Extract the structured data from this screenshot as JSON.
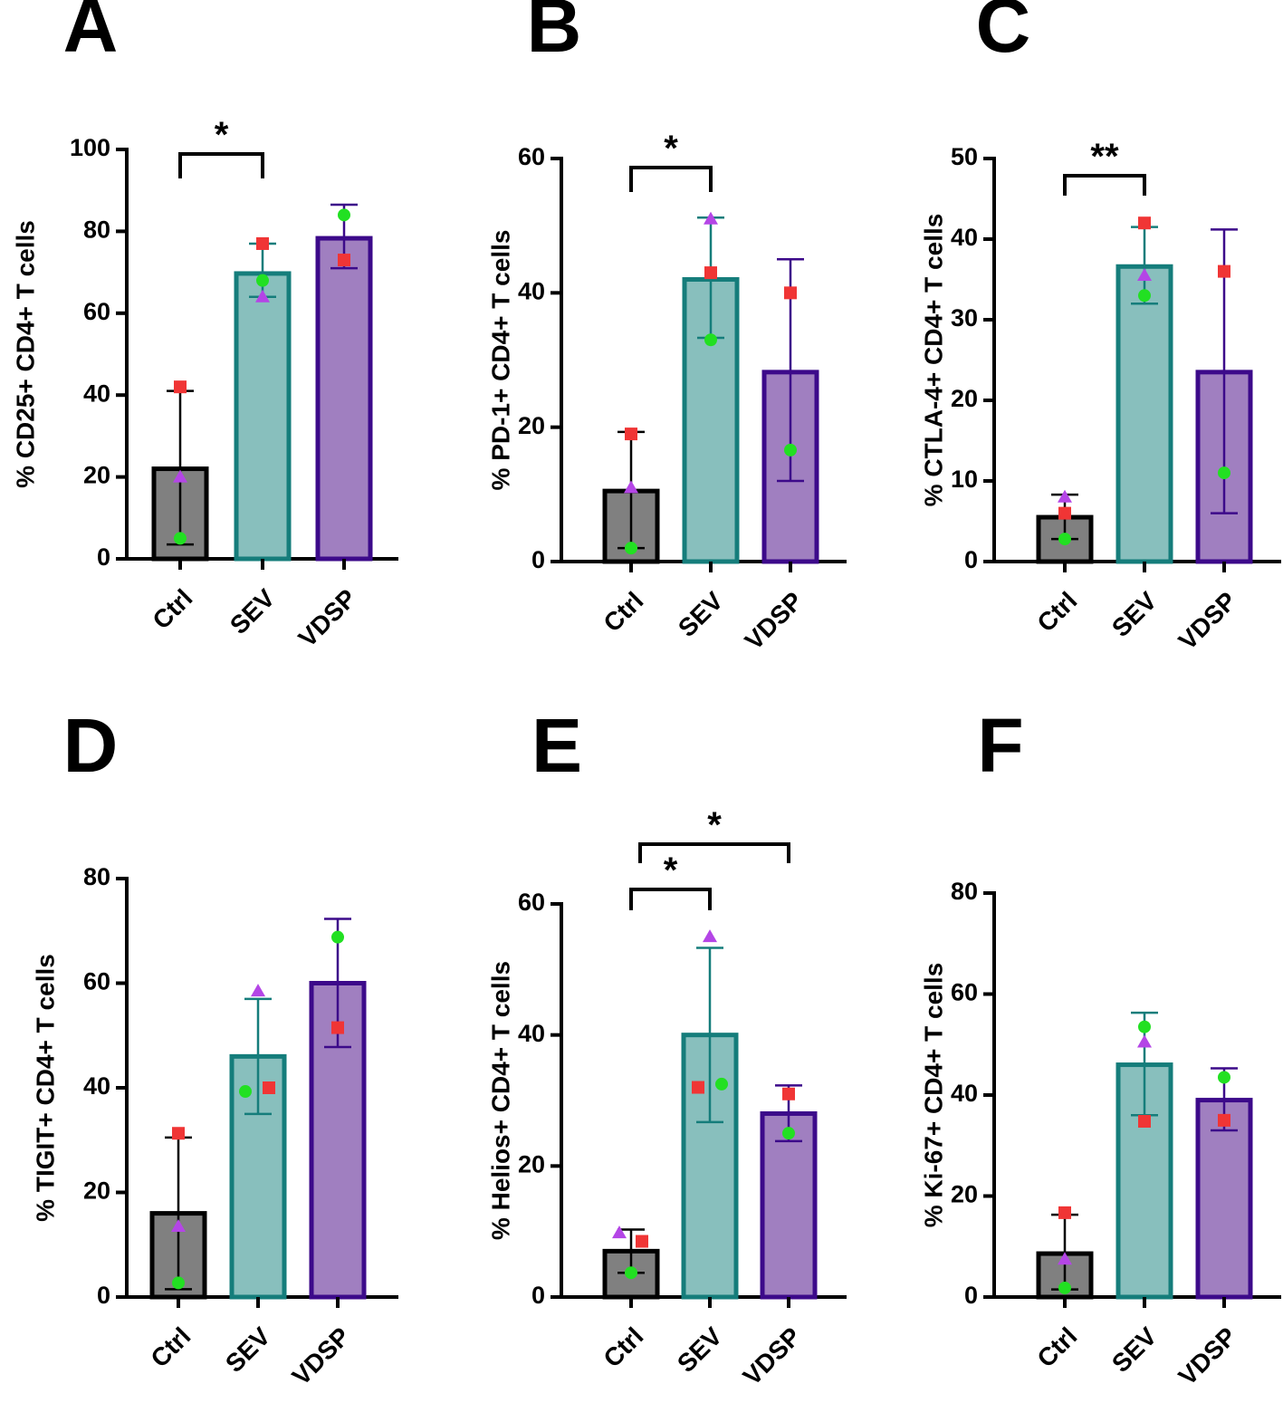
{
  "colors": {
    "Ctrl": {
      "fill": "#808080",
      "stroke": "#000000"
    },
    "SEV": {
      "fill": "#88bfbd",
      "stroke": "#157d7b"
    },
    "VDSP": {
      "fill": "#a07fc0",
      "stroke": "#3c0a8a"
    },
    "square": "#f03535",
    "circle": "#22e022",
    "triangle": "#b445e6"
  },
  "chart_data": [
    {
      "panel": "A",
      "type": "bar",
      "ylabel": "% CD25+ CD4+ T cells",
      "ylim": [
        0,
        100
      ],
      "yticks": [
        0,
        20,
        40,
        60,
        80,
        100
      ],
      "categories": [
        "Ctrl",
        "SEV",
        "VDSP"
      ],
      "values": [
        22,
        69.7,
        78.3
      ],
      "error": [
        [
          3.5,
          41
        ],
        [
          64,
          77
        ],
        [
          71,
          86.5
        ]
      ],
      "points": {
        "square": [
          42,
          77,
          73
        ],
        "circle": [
          5,
          68,
          84
        ],
        "triangle": [
          20,
          64,
          null
        ]
      },
      "significance": [
        {
          "pair": [
            "Ctrl",
            "SEV"
          ],
          "label": "*"
        }
      ]
    },
    {
      "panel": "B",
      "type": "bar",
      "ylabel": "% PD-1+ CD4+ T cells",
      "ylim": [
        0,
        60
      ],
      "yticks": [
        0,
        20,
        40,
        60
      ],
      "categories": [
        "Ctrl",
        "SEV",
        "VDSP"
      ],
      "values": [
        10.5,
        42,
        28.2
      ],
      "error": [
        [
          2,
          19.3
        ],
        [
          33.3,
          51.2
        ],
        [
          12,
          45
        ]
      ],
      "points": {
        "square": [
          19,
          43,
          40
        ],
        "circle": [
          2,
          33,
          16.6
        ],
        "triangle": [
          11,
          51,
          null
        ]
      },
      "significance": [
        {
          "pair": [
            "Ctrl",
            "SEV"
          ],
          "label": "*"
        }
      ]
    },
    {
      "panel": "C",
      "type": "bar",
      "ylabel": "% CTLA-4+ CD4+ T cells",
      "ylim": [
        0,
        50
      ],
      "yticks": [
        0,
        10,
        20,
        30,
        40,
        50
      ],
      "categories": [
        "Ctrl",
        "SEV",
        "VDSP"
      ],
      "values": [
        5.5,
        36.6,
        23.5
      ],
      "error": [
        [
          2.8,
          8.3
        ],
        [
          32,
          41.5
        ],
        [
          6,
          41.2
        ]
      ],
      "points": {
        "square": [
          6,
          42,
          36
        ],
        "circle": [
          2.8,
          33,
          11
        ],
        "triangle": [
          8,
          35.5,
          null
        ]
      },
      "significance": [
        {
          "pair": [
            "Ctrl",
            "SEV"
          ],
          "label": "**"
        }
      ]
    },
    {
      "panel": "D",
      "type": "bar",
      "ylabel": "% TIGIT+ CD4+ T cells",
      "ylim": [
        0,
        80
      ],
      "yticks": [
        0,
        20,
        40,
        60,
        80
      ],
      "categories": [
        "Ctrl",
        "SEV",
        "VDSP"
      ],
      "values": [
        16,
        46,
        60
      ],
      "error": [
        [
          1.5,
          30.5
        ],
        [
          35,
          57
        ],
        [
          47.8,
          72.3
        ]
      ],
      "points": {
        "square": [
          31.3,
          40,
          51.5
        ],
        "circle": [
          2.7,
          39.3,
          68.8
        ],
        "triangle": [
          13.5,
          58.5,
          null
        ]
      },
      "significance": []
    },
    {
      "panel": "E",
      "type": "bar",
      "ylabel": "% Helios+ CD4+ T cells",
      "ylim": [
        0,
        60
      ],
      "yticks": [
        0,
        20,
        40,
        60
      ],
      "categories": [
        "Ctrl",
        "SEV",
        "VDSP"
      ],
      "values": [
        7,
        40,
        28
      ],
      "error": [
        [
          3.7,
          10.3
        ],
        [
          26.7,
          53.3
        ],
        [
          23.8,
          32.3
        ]
      ],
      "points": {
        "square": [
          8.5,
          32,
          31
        ],
        "circle": [
          3.7,
          32.5,
          25
        ],
        "triangle": [
          9.8,
          55,
          null
        ]
      },
      "significance": [
        {
          "pair": [
            "Ctrl",
            "SEV"
          ],
          "label": "*"
        },
        {
          "pair": [
            "Ctrl",
            "VDSP"
          ],
          "label": "*"
        }
      ]
    },
    {
      "panel": "F",
      "type": "bar",
      "ylabel": "% Ki-67+ CD4+ T cells",
      "ylim": [
        0,
        80
      ],
      "yticks": [
        0,
        20,
        40,
        60,
        80
      ],
      "categories": [
        "Ctrl",
        "SEV",
        "VDSP"
      ],
      "values": [
        8.6,
        46,
        39
      ],
      "error": [
        [
          1.5,
          16.3
        ],
        [
          36,
          56.3
        ],
        [
          33,
          45.3
        ]
      ],
      "points": {
        "square": [
          16.7,
          34.8,
          35
        ],
        "circle": [
          1.8,
          53.5,
          43.5
        ],
        "triangle": [
          7.5,
          50.5,
          null
        ]
      },
      "significance": []
    }
  ]
}
